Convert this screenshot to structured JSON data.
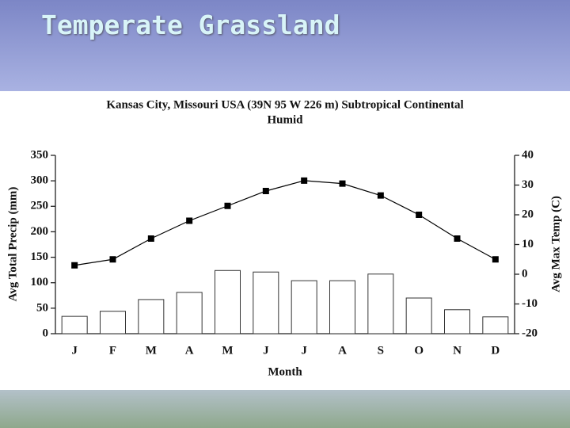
{
  "slide": {
    "title": "Temperate Grassland"
  },
  "chart_data": {
    "type": "combo",
    "title": [
      "Kansas City, Missouri USA (39N 95 W 226 m) Subtropical Continental",
      "Humid"
    ],
    "xlabel": "Month",
    "ylabel": "Avg Total Precip (mm)",
    "y2label": "Avg Max Temp (C)",
    "categories": [
      "J",
      "F",
      "M",
      "A",
      "M",
      "J",
      "J",
      "A",
      "S",
      "O",
      "N",
      "D"
    ],
    "series": [
      {
        "type": "bar",
        "color": "#ffffff",
        "values": [
          34,
          44,
          67,
          81,
          124,
          121,
          104,
          104,
          117,
          70,
          47,
          33
        ]
      },
      {
        "type": "line",
        "axis": "y2",
        "color": "#000000",
        "values": [
          3,
          5,
          12,
          18,
          23,
          28,
          31.5,
          30.5,
          26.5,
          20,
          12,
          5
        ]
      }
    ],
    "ylim": [
      0,
      350
    ],
    "yticks": [
      0,
      50,
      100,
      150,
      200,
      250,
      300,
      350
    ],
    "y2lim": [
      -20,
      40
    ],
    "y2ticks": [
      -20,
      -10,
      0,
      10,
      20,
      30,
      40
    ]
  }
}
